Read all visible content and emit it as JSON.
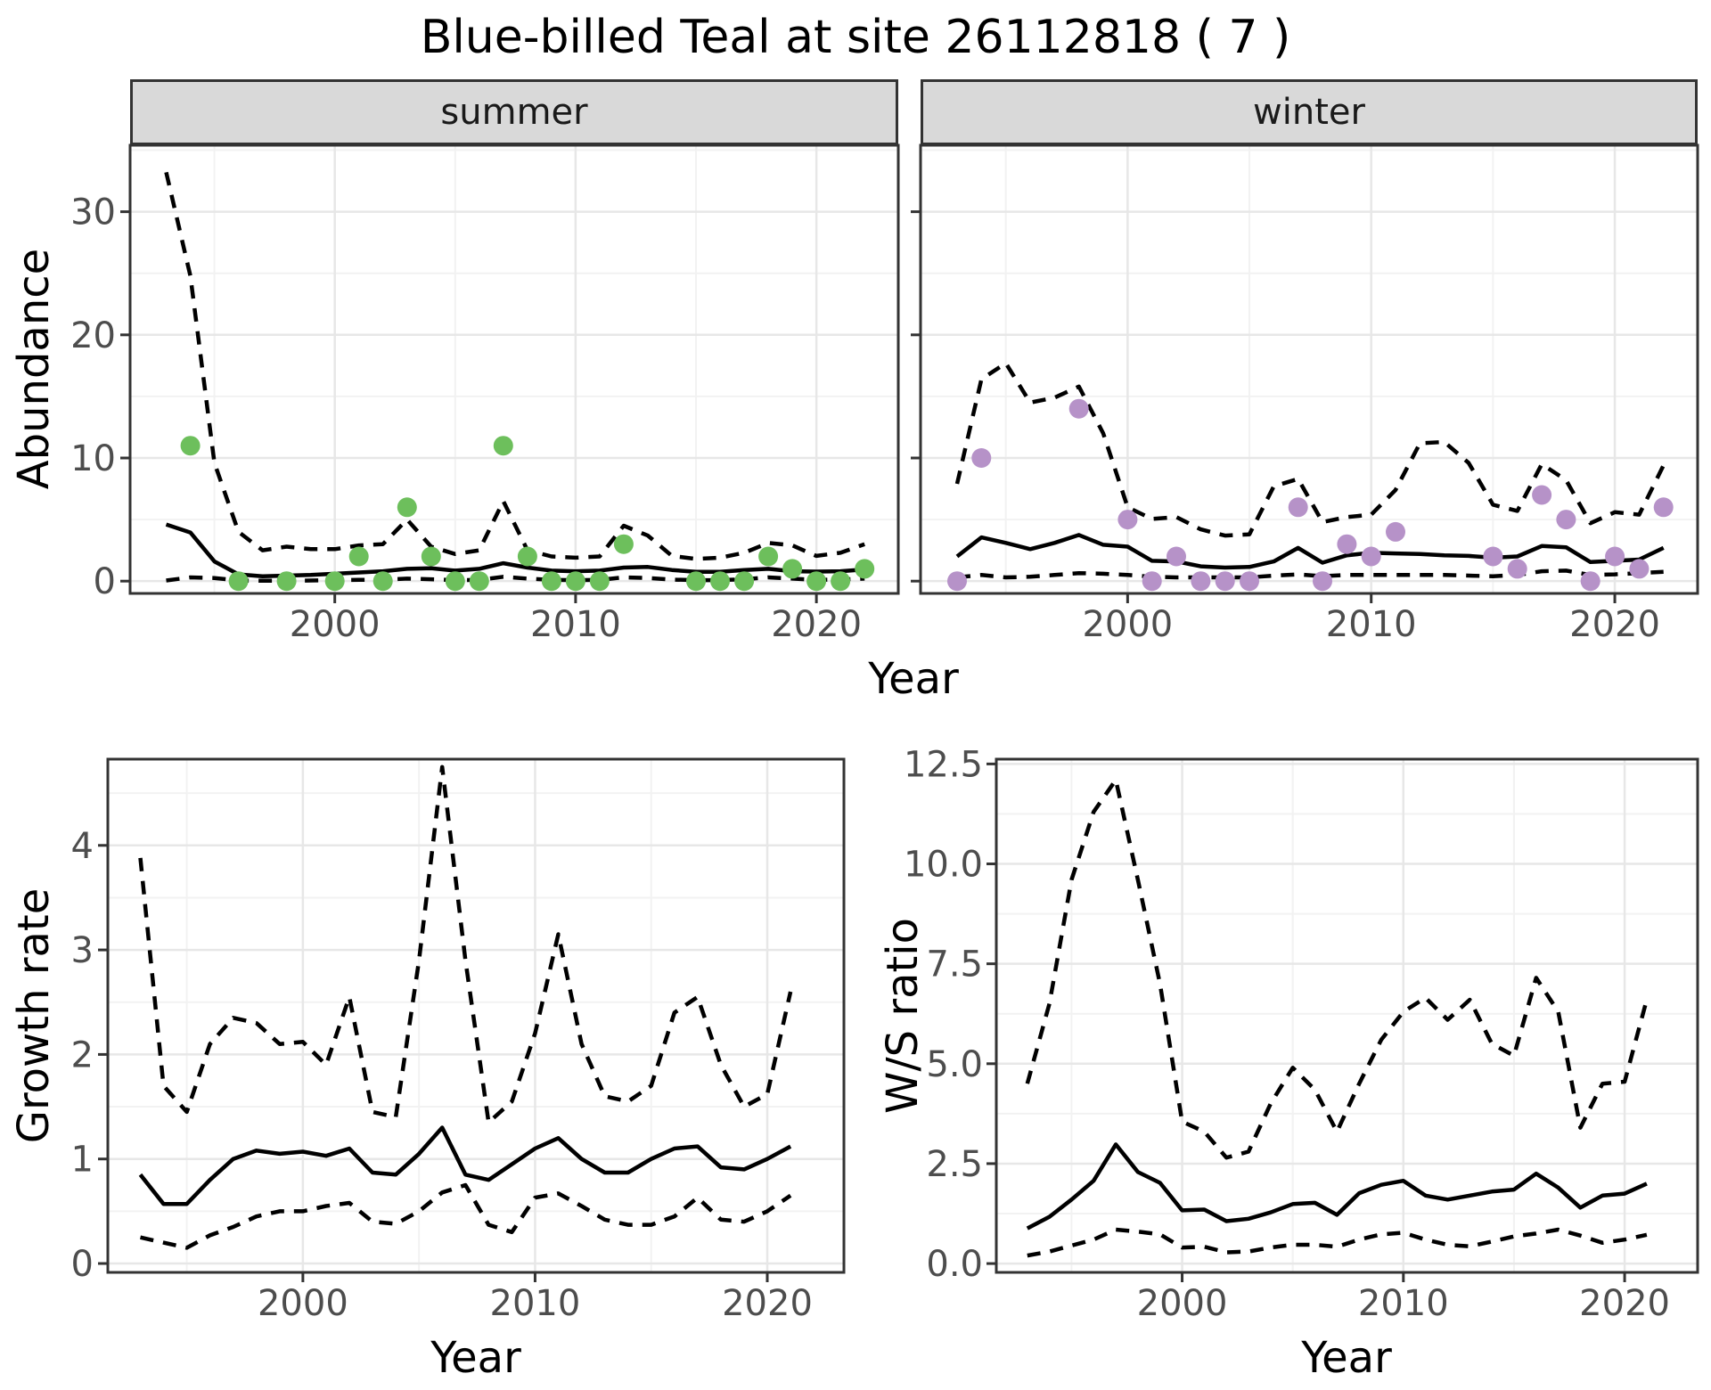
{
  "title": "Blue-billed Teal at site 26112818 ( 7 )",
  "facets": [
    "summer",
    "winter"
  ],
  "axis_titles": {
    "abundance": "Abundance",
    "year": "Year",
    "growth_rate": "Growth rate",
    "ws_ratio": "W/S ratio"
  },
  "colors": {
    "summer_point": "#6dbf5c",
    "winter_point": "#b692c8",
    "line": "#000000",
    "grid_major": "#e7e7e7",
    "grid_minor": "#f2f2f2",
    "panel_border": "#333333",
    "axis_text": "#4d4d4d",
    "strip_bg": "#d9d9d9"
  },
  "axes": {
    "year_ticks": [
      2000,
      2010,
      2020
    ],
    "year_tick_labels": [
      "2000",
      "2010",
      "2020"
    ],
    "abundance_ticks": [
      0,
      10,
      20,
      30
    ],
    "abundance_tick_labels": [
      "0",
      "10",
      "20",
      "30"
    ],
    "growth_ticks": [
      0,
      1,
      2,
      3,
      4
    ],
    "growth_tick_labels": [
      "0",
      "1",
      "2",
      "3",
      "4"
    ],
    "ws_ticks": [
      0,
      2.5,
      5,
      7.5,
      10,
      12.5
    ],
    "ws_tick_labels": [
      "0.0",
      "2.5",
      "5.0",
      "7.5",
      "10.0",
      "12.5"
    ]
  },
  "chart_data": [
    {
      "type": "line",
      "title": "Abundance - summer facet",
      "facet": "summer",
      "xlabel": "Year",
      "ylabel": "Abundance",
      "xlim": [
        1991.5,
        2023.4
      ],
      "ylim": [
        -1,
        35.4
      ],
      "grid": true,
      "x": [
        1993,
        1994,
        1995,
        1996,
        1997,
        1998,
        1999,
        2000,
        2001,
        2002,
        2003,
        2004,
        2005,
        2006,
        2007,
        2008,
        2009,
        2010,
        2011,
        2012,
        2013,
        2014,
        2015,
        2016,
        2017,
        2018,
        2019,
        2020,
        2021,
        2022
      ],
      "series": [
        {
          "name": "mean",
          "style": "solid",
          "values": [
            4.6,
            3.95,
            1.6,
            0.55,
            0.4,
            0.45,
            0.5,
            0.6,
            0.7,
            0.8,
            1.0,
            1.05,
            0.85,
            1.0,
            1.45,
            1.1,
            0.85,
            0.8,
            0.85,
            1.1,
            1.15,
            0.9,
            0.75,
            0.75,
            0.9,
            1.0,
            0.8,
            0.77,
            0.8,
            0.95
          ]
        },
        {
          "name": "upper_ci",
          "style": "dashed",
          "values": [
            33.2,
            24.8,
            9.6,
            4.0,
            2.5,
            2.8,
            2.6,
            2.6,
            2.9,
            3.0,
            5.0,
            2.8,
            2.2,
            2.5,
            6.5,
            2.5,
            2.0,
            1.9,
            2.0,
            4.5,
            3.7,
            2.05,
            1.8,
            1.9,
            2.3,
            3.1,
            2.9,
            2.05,
            2.3,
            3.0
          ]
        },
        {
          "name": "lower_ci",
          "style": "dashed",
          "values": [
            0.05,
            0.3,
            0.25,
            0.05,
            0.03,
            0.03,
            0.05,
            0.08,
            0.1,
            0.12,
            0.2,
            0.15,
            0.08,
            0.1,
            0.35,
            0.2,
            0.1,
            0.08,
            0.1,
            0.3,
            0.25,
            0.12,
            0.08,
            0.08,
            0.15,
            0.3,
            0.2,
            0.1,
            0.12,
            0.2
          ]
        }
      ],
      "points": {
        "name": "observed_counts",
        "color_key": "summer_point",
        "data": [
          [
            1994,
            11
          ],
          [
            1996,
            0
          ],
          [
            1998,
            0
          ],
          [
            2000,
            0
          ],
          [
            2001,
            2
          ],
          [
            2002,
            0
          ],
          [
            2003,
            6
          ],
          [
            2004,
            2
          ],
          [
            2005,
            0
          ],
          [
            2006,
            0
          ],
          [
            2007,
            11
          ],
          [
            2008,
            2
          ],
          [
            2009,
            0
          ],
          [
            2010,
            0
          ],
          [
            2011,
            0
          ],
          [
            2012,
            3
          ],
          [
            2015,
            0
          ],
          [
            2016,
            0
          ],
          [
            2017,
            0
          ],
          [
            2018,
            2
          ],
          [
            2019,
            1
          ],
          [
            2020,
            0
          ],
          [
            2021,
            0
          ],
          [
            2022,
            1
          ]
        ]
      }
    },
    {
      "type": "line",
      "title": "Abundance - winter facet",
      "facet": "winter",
      "xlabel": "Year",
      "ylabel": "Abundance",
      "xlim": [
        1991.5,
        2023.4
      ],
      "ylim": [
        -1,
        35.4
      ],
      "grid": true,
      "x": [
        1993,
        1994,
        1995,
        1996,
        1997,
        1998,
        1999,
        2000,
        2001,
        2002,
        2003,
        2004,
        2005,
        2006,
        2007,
        2008,
        2009,
        2010,
        2011,
        2012,
        2013,
        2014,
        2015,
        2016,
        2017,
        2018,
        2019,
        2020,
        2021,
        2022
      ],
      "series": [
        {
          "name": "mean",
          "style": "solid",
          "values": [
            2.0,
            3.55,
            3.1,
            2.6,
            3.1,
            3.75,
            2.95,
            2.8,
            1.65,
            1.6,
            1.2,
            1.1,
            1.15,
            1.6,
            2.7,
            1.5,
            2.1,
            2.3,
            2.25,
            2.2,
            2.1,
            2.05,
            1.9,
            2.0,
            2.85,
            2.75,
            1.55,
            1.65,
            1.75,
            2.7
          ]
        },
        {
          "name": "upper_ci",
          "style": "dashed",
          "values": [
            7.9,
            16.4,
            17.7,
            14.5,
            14.9,
            15.8,
            12.0,
            6.0,
            5.05,
            5.2,
            4.2,
            3.7,
            3.8,
            7.7,
            8.3,
            4.8,
            5.2,
            5.4,
            7.4,
            11.2,
            11.3,
            9.6,
            6.2,
            5.7,
            9.5,
            8.2,
            4.7,
            5.6,
            5.4,
            9.4
          ]
        },
        {
          "name": "lower_ci",
          "style": "dashed",
          "values": [
            0.3,
            0.5,
            0.3,
            0.35,
            0.5,
            0.65,
            0.6,
            0.5,
            0.35,
            0.3,
            0.3,
            0.3,
            0.3,
            0.45,
            0.55,
            0.4,
            0.5,
            0.5,
            0.5,
            0.5,
            0.5,
            0.45,
            0.4,
            0.5,
            0.8,
            0.85,
            0.5,
            0.55,
            0.65,
            0.75
          ]
        }
      ],
      "points": {
        "name": "observed_counts",
        "color_key": "winter_point",
        "data": [
          [
            1993,
            0
          ],
          [
            1994,
            10
          ],
          [
            1998,
            14
          ],
          [
            2000,
            5
          ],
          [
            2001,
            0
          ],
          [
            2002,
            2
          ],
          [
            2003,
            0
          ],
          [
            2004,
            0
          ],
          [
            2005,
            0
          ],
          [
            2007,
            6
          ],
          [
            2008,
            0
          ],
          [
            2009,
            3
          ],
          [
            2010,
            2
          ],
          [
            2011,
            4
          ],
          [
            2015,
            2
          ],
          [
            2016,
            1
          ],
          [
            2017,
            7
          ],
          [
            2018,
            5
          ],
          [
            2019,
            0
          ],
          [
            2020,
            2
          ],
          [
            2021,
            1
          ],
          [
            2022,
            6
          ]
        ]
      }
    },
    {
      "type": "line",
      "title": "Growth rate",
      "facet": null,
      "xlabel": "Year",
      "ylabel": "Growth rate",
      "xlim": [
        1991.6,
        2023.3
      ],
      "ylim": [
        -0.085,
        4.825
      ],
      "grid": true,
      "x": [
        1993,
        1994,
        1995,
        1996,
        1997,
        1998,
        1999,
        2000,
        2001,
        2002,
        2003,
        2004,
        2005,
        2006,
        2007,
        2008,
        2009,
        2010,
        2011,
        2012,
        2013,
        2014,
        2015,
        2016,
        2017,
        2018,
        2019,
        2020,
        2021
      ],
      "series": [
        {
          "name": "mean",
          "style": "solid",
          "values": [
            0.85,
            0.57,
            0.57,
            0.8,
            1.0,
            1.08,
            1.05,
            1.07,
            1.03,
            1.1,
            0.87,
            0.85,
            1.05,
            1.3,
            0.85,
            0.8,
            0.95,
            1.1,
            1.2,
            1.0,
            0.87,
            0.87,
            1.0,
            1.1,
            1.12,
            0.92,
            0.9,
            1.0,
            1.12
          ]
        },
        {
          "name": "upper_ci",
          "style": "dashed",
          "values": [
            3.88,
            1.7,
            1.45,
            2.1,
            2.35,
            2.3,
            2.1,
            2.12,
            1.9,
            2.55,
            1.45,
            1.4,
            2.9,
            4.75,
            2.9,
            1.35,
            1.55,
            2.2,
            3.15,
            2.1,
            1.6,
            1.55,
            1.7,
            2.4,
            2.55,
            1.9,
            1.5,
            1.62,
            2.6
          ]
        },
        {
          "name": "lower_ci",
          "style": "dashed",
          "values": [
            0.25,
            0.2,
            0.15,
            0.27,
            0.35,
            0.45,
            0.5,
            0.5,
            0.55,
            0.58,
            0.4,
            0.38,
            0.5,
            0.68,
            0.75,
            0.37,
            0.3,
            0.63,
            0.67,
            0.55,
            0.42,
            0.37,
            0.37,
            0.45,
            0.63,
            0.42,
            0.4,
            0.5,
            0.65
          ]
        }
      ],
      "points": null
    },
    {
      "type": "line",
      "title": "W/S ratio",
      "facet": null,
      "xlabel": "Year",
      "ylabel": "W/S ratio",
      "xlim": [
        1991.6,
        2023.3
      ],
      "ylim": [
        -0.221,
        12.62
      ],
      "grid": true,
      "x": [
        1993,
        1994,
        1995,
        1996,
        1997,
        1998,
        1999,
        2000,
        2001,
        2002,
        2003,
        2004,
        2005,
        2006,
        2007,
        2008,
        2009,
        2010,
        2011,
        2012,
        2013,
        2014,
        2015,
        2016,
        2017,
        2018,
        2019,
        2020,
        2021
      ],
      "series": [
        {
          "name": "mean",
          "style": "solid",
          "values": [
            0.88,
            1.17,
            1.6,
            2.07,
            2.98,
            2.29,
            2.02,
            1.33,
            1.35,
            1.06,
            1.12,
            1.28,
            1.49,
            1.52,
            1.22,
            1.76,
            1.97,
            2.07,
            1.7,
            1.6,
            1.7,
            1.8,
            1.85,
            2.25,
            1.9,
            1.4,
            1.7,
            1.75,
            2.0
          ]
        },
        {
          "name": "upper_ci",
          "style": "dashed",
          "values": [
            4.5,
            6.5,
            9.6,
            11.3,
            12.1,
            9.6,
            7.0,
            3.55,
            3.3,
            2.65,
            2.8,
            4.0,
            4.9,
            4.35,
            3.3,
            4.5,
            5.6,
            6.3,
            6.65,
            6.1,
            6.6,
            5.5,
            5.2,
            7.15,
            6.3,
            3.4,
            4.5,
            4.55,
            6.6
          ]
        },
        {
          "name": "lower_ci",
          "style": "dashed",
          "values": [
            0.2,
            0.3,
            0.45,
            0.6,
            0.85,
            0.8,
            0.73,
            0.4,
            0.42,
            0.28,
            0.3,
            0.4,
            0.47,
            0.47,
            0.42,
            0.6,
            0.73,
            0.77,
            0.6,
            0.47,
            0.43,
            0.55,
            0.68,
            0.75,
            0.85,
            0.7,
            0.52,
            0.6,
            0.72
          ]
        }
      ],
      "points": null
    }
  ]
}
